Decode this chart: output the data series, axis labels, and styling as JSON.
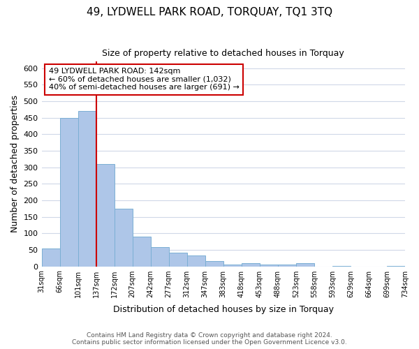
{
  "title1": "49, LYDWELL PARK ROAD, TORQUAY, TQ1 3TQ",
  "title2": "Size of property relative to detached houses in Torquay",
  "xlabel": "Distribution of detached houses by size in Torquay",
  "ylabel": "Number of detached properties",
  "bin_labels": [
    "31sqm",
    "66sqm",
    "101sqm",
    "137sqm",
    "172sqm",
    "207sqm",
    "242sqm",
    "277sqm",
    "312sqm",
    "347sqm",
    "383sqm",
    "418sqm",
    "453sqm",
    "488sqm",
    "523sqm",
    "558sqm",
    "593sqm",
    "629sqm",
    "664sqm",
    "699sqm",
    "734sqm"
  ],
  "bar_heights": [
    55,
    450,
    470,
    310,
    175,
    90,
    58,
    42,
    32,
    16,
    6,
    10,
    5,
    5,
    10,
    0,
    2,
    0,
    0,
    2
  ],
  "bar_color": "#aec6e8",
  "bar_edge_color": "#7bafd4",
  "vline_x": 3,
  "vline_color": "#cc0000",
  "ylim": [
    0,
    620
  ],
  "yticks": [
    0,
    50,
    100,
    150,
    200,
    250,
    300,
    350,
    400,
    450,
    500,
    550,
    600
  ],
  "annotation_title": "49 LYDWELL PARK ROAD: 142sqm",
  "annotation_line1": "← 60% of detached houses are smaller (1,032)",
  "annotation_line2": "40% of semi-detached houses are larger (691) →",
  "annotation_box_color": "#ffffff",
  "annotation_box_edge": "#cc0000",
  "footer1": "Contains HM Land Registry data © Crown copyright and database right 2024.",
  "footer2": "Contains public sector information licensed under the Open Government Licence v3.0.",
  "background_color": "#ffffff",
  "grid_color": "#d0d8e8"
}
